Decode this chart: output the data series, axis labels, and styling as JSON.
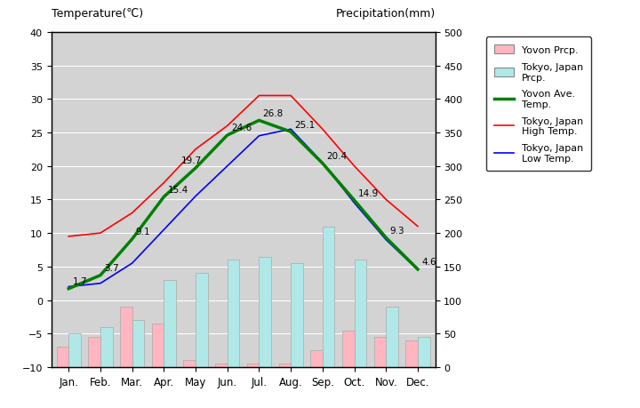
{
  "months": [
    "Jan.",
    "Feb.",
    "Mar.",
    "Apr.",
    "May",
    "Jun.",
    "Jul.",
    "Aug.",
    "Sep.",
    "Oct.",
    "Nov.",
    "Dec."
  ],
  "yovon_ave_temp": [
    1.7,
    3.7,
    9.1,
    15.4,
    19.7,
    24.6,
    26.8,
    25.1,
    20.4,
    14.9,
    9.3,
    4.6
  ],
  "tokyo_high_temp": [
    9.5,
    10.0,
    13.0,
    17.5,
    22.5,
    26.0,
    30.5,
    30.5,
    25.5,
    20.0,
    15.0,
    11.0
  ],
  "tokyo_low_temp": [
    2.0,
    2.5,
    5.5,
    10.5,
    15.5,
    20.0,
    24.5,
    25.5,
    20.5,
    14.5,
    9.0,
    4.5
  ],
  "temp_labels": [
    "1.7",
    "3.7",
    "9.1",
    "15.4",
    "19.7",
    "24.6",
    "26.8",
    "25.1",
    "20.4",
    "14.9",
    "9.3",
    "4.6"
  ],
  "yovon_prcp_mm": [
    30,
    45,
    90,
    65,
    10,
    5,
    5,
    5,
    25,
    55,
    45,
    40
  ],
  "tokyo_prcp_mm": [
    50,
    60,
    70,
    130,
    140,
    160,
    165,
    155,
    210,
    160,
    90,
    45
  ],
  "plot_bg_color": "#d3d3d3",
  "yovon_bar_color": "#ffb6c1",
  "tokyo_bar_color": "#b0e8e8",
  "yovon_line_color": "#008000",
  "tokyo_high_color": "#ff0000",
  "tokyo_low_color": "#0000ff",
  "title_left": "Temperature(℃)",
  "title_right": "Precipitation(mm)",
  "temp_ylim": [
    -10,
    40
  ],
  "prcp_ylim": [
    0,
    500
  ],
  "temp_yticks": [
    -10,
    -5,
    0,
    5,
    10,
    15,
    20,
    25,
    30,
    35,
    40
  ],
  "prcp_yticks": [
    0,
    50,
    100,
    150,
    200,
    250,
    300,
    350,
    400,
    450,
    500
  ],
  "bar_width": 0.38
}
